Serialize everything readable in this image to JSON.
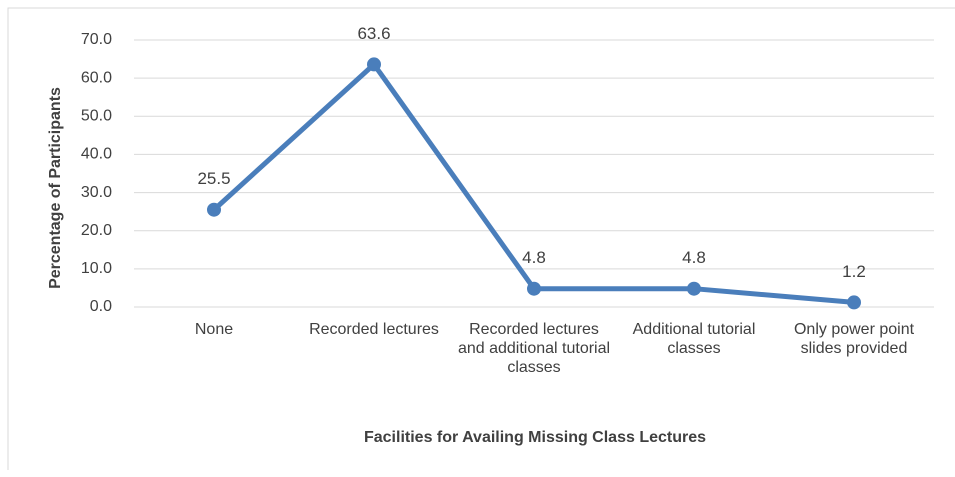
{
  "chart_data": {
    "type": "line",
    "x_label": "Facilities for Availing Missing Class Lectures",
    "y_label": "Percentage of Participants",
    "categories": [
      "None",
      "Recorded lectures",
      "Recorded lectures and additional tutorial classes",
      "Additional tutorial classes",
      "Only power point slides provided"
    ],
    "series": [
      {
        "name": "Percentage of Participants",
        "color": "#4a7ebb",
        "values": [
          25.5,
          63.6,
          4.8,
          4.8,
          1.2
        ]
      }
    ],
    "ylim": [
      0,
      70
    ],
    "yticks": [
      {
        "value": 0,
        "label": "0.0"
      },
      {
        "value": 10,
        "label": "10.0"
      },
      {
        "value": 20,
        "label": "20.0"
      },
      {
        "value": 30,
        "label": "30.0"
      },
      {
        "value": 40,
        "label": "40.0"
      },
      {
        "value": 50,
        "label": "50.0"
      },
      {
        "value": 60,
        "label": "60.0"
      },
      {
        "value": 70,
        "label": "70.0"
      }
    ],
    "grid": true
  }
}
